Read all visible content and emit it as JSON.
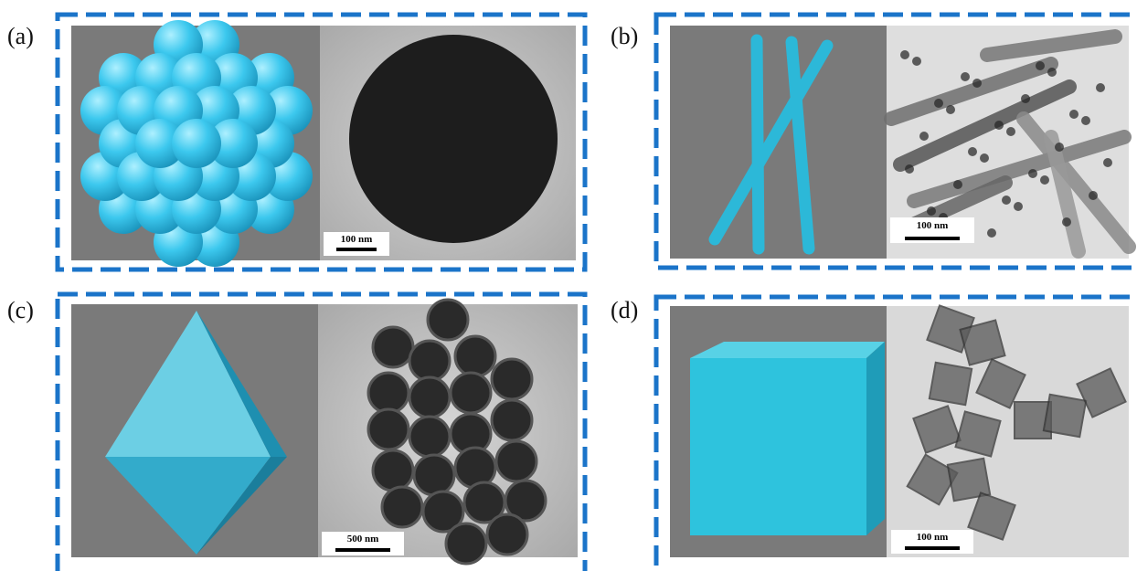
{
  "panels": [
    {
      "label": "(a)",
      "scale_bar": "100 nm"
    },
    {
      "label": "(b)",
      "scale_bar": "100 nm"
    },
    {
      "label": "(c)",
      "scale_bar": "500 nm"
    },
    {
      "label": "(d)",
      "scale_bar": "100 nm"
    }
  ]
}
